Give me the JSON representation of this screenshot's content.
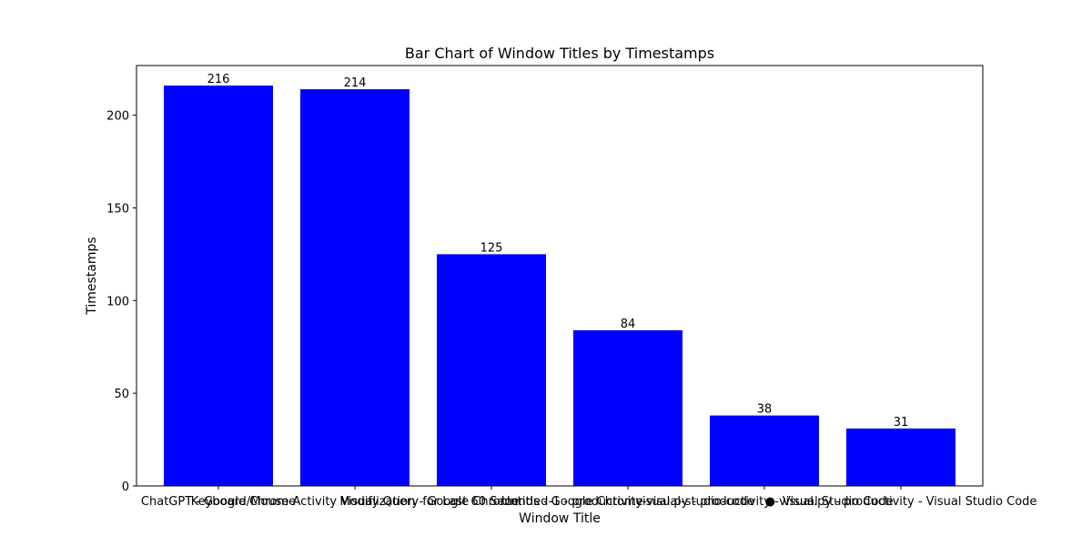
{
  "chart_data": {
    "type": "bar",
    "title": "Bar Chart of Window Titles by Timestamps",
    "xlabel": "Window Title",
    "ylabel": "Timestamps",
    "categories": [
      "ChatGPT - Google Chrome",
      "Keyboard/Mouse Activity Visualization - Google Chrome",
      "Modify Query for Last 60 Seconds - Google Chrome",
      "Untitled-1 - productivity-visual-studio-code",
      "visual.py - productivity - Visual Studio Code",
      "● visual.py - productivity - Visual Studio Code"
    ],
    "values": [
      216,
      214,
      125,
      84,
      38,
      31
    ],
    "ylim": [
      0,
      226.8
    ],
    "yticks": [
      0,
      50,
      100,
      150,
      200
    ],
    "bar_color": "#0000ff",
    "grid": false,
    "legend": null
  }
}
